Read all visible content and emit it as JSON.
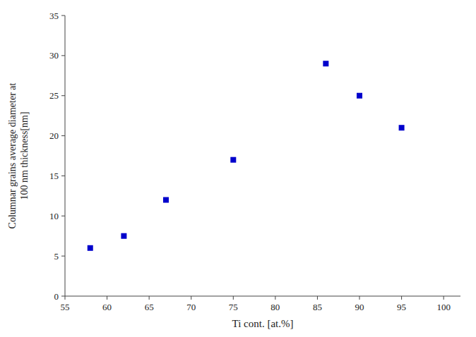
{
  "chart_data": {
    "type": "scatter",
    "x": [
      58,
      62,
      67,
      75,
      86,
      90,
      95
    ],
    "values": [
      6,
      7.5,
      12,
      17,
      29,
      25,
      21
    ],
    "color": "#0000CC",
    "marker": "square",
    "xlabel": "Ti cont. [at.%]",
    "ylabel": "Columnar grains average diameter at\n100 nm thickness[nm]",
    "xlim": [
      55,
      102
    ],
    "ylim": [
      0,
      35
    ],
    "xticks": [
      55,
      60,
      65,
      70,
      75,
      80,
      85,
      90,
      95,
      100
    ],
    "yticks": [
      0,
      5,
      10,
      15,
      20,
      25,
      30,
      35
    ],
    "grid": false
  }
}
